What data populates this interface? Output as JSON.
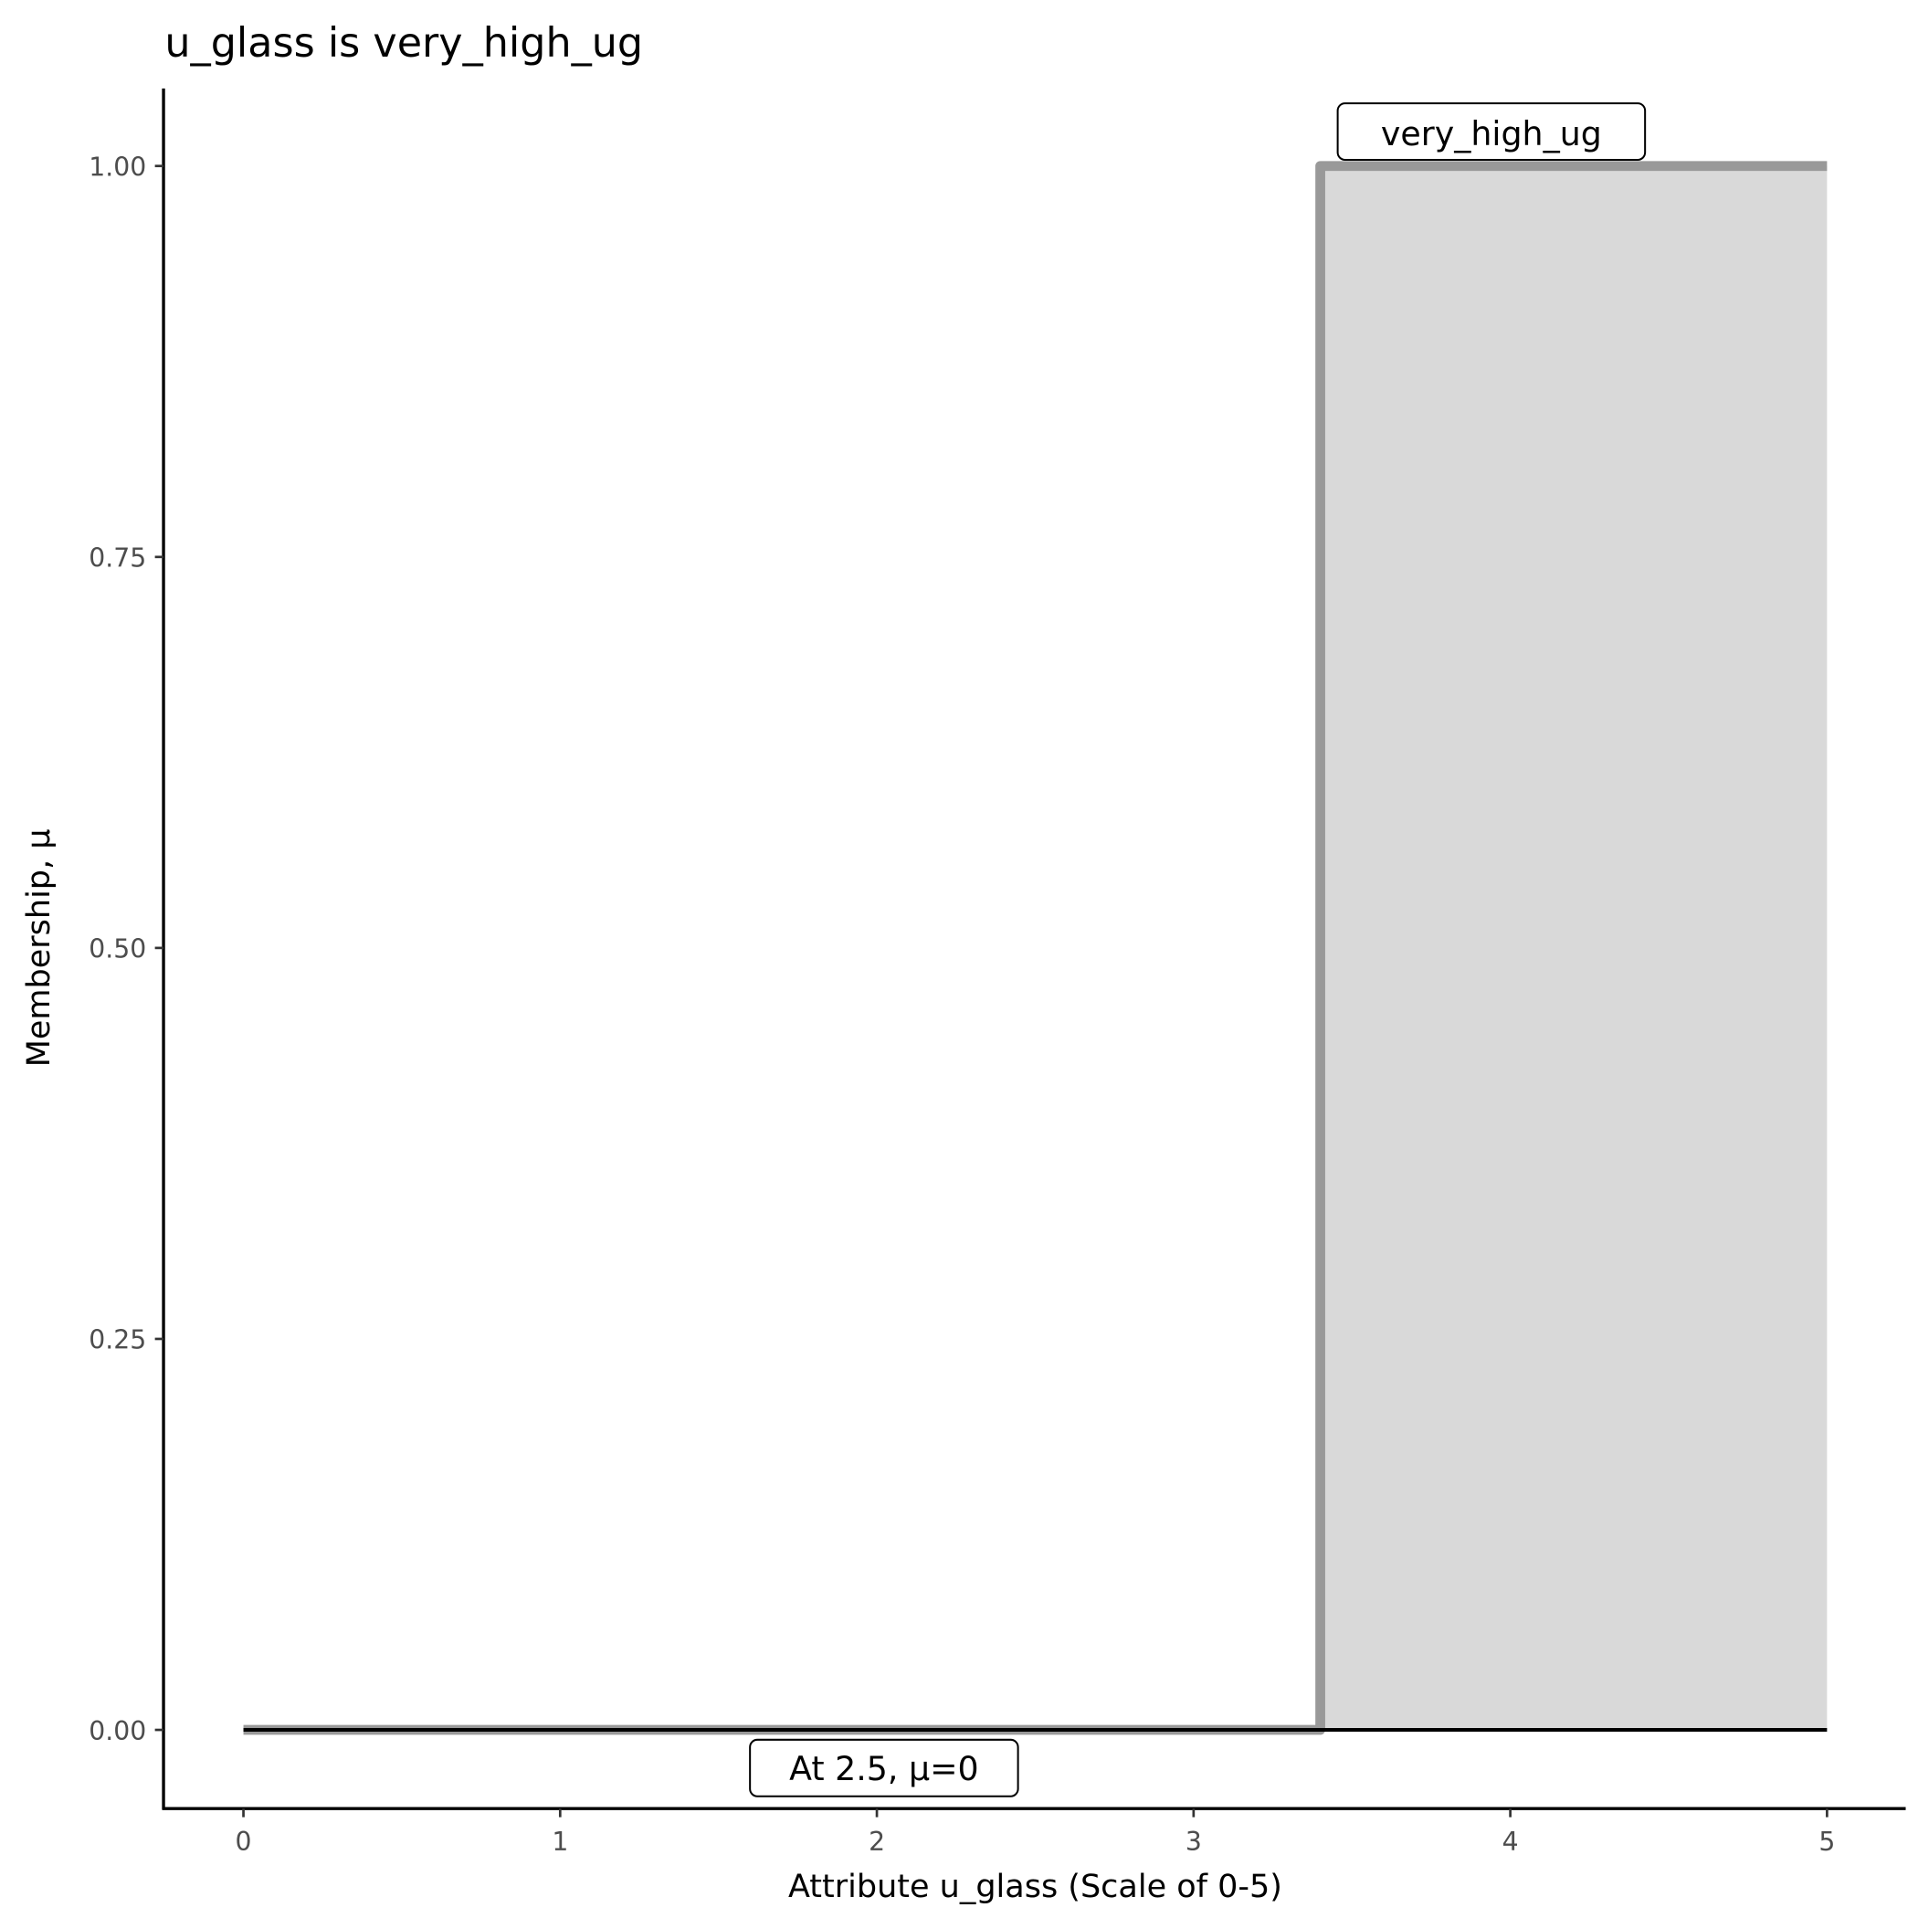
{
  "chart_data": {
    "type": "area",
    "title": "u_glass is very_high_ug",
    "xlabel": "Attribute u_glass (Scale of 0-5)",
    "ylabel": "Membership, μ",
    "xlim": [
      0,
      5
    ],
    "ylim": [
      0,
      1
    ],
    "x_ticks": [
      "0",
      "1",
      "2",
      "3",
      "4",
      "5"
    ],
    "y_ticks": [
      "0.00",
      "0.25",
      "0.50",
      "0.75",
      "1.00"
    ],
    "grid": false,
    "series": [
      {
        "name": "very_high_ug",
        "x": [
          0,
          3.4,
          3.4,
          5
        ],
        "y": [
          0,
          0,
          1,
          1
        ],
        "line_color": "#999999",
        "fill_color": "#d9d9d9"
      }
    ],
    "evaluation_line": {
      "x": [
        0,
        5
      ],
      "y": [
        0,
        0
      ],
      "color": "#000000"
    },
    "annotations": [
      {
        "text": "very_high_ug",
        "x": 4.0,
        "y": 1.0
      },
      {
        "text": "At 2.5, μ=0",
        "x": 2.0,
        "y": -0.03
      }
    ]
  }
}
